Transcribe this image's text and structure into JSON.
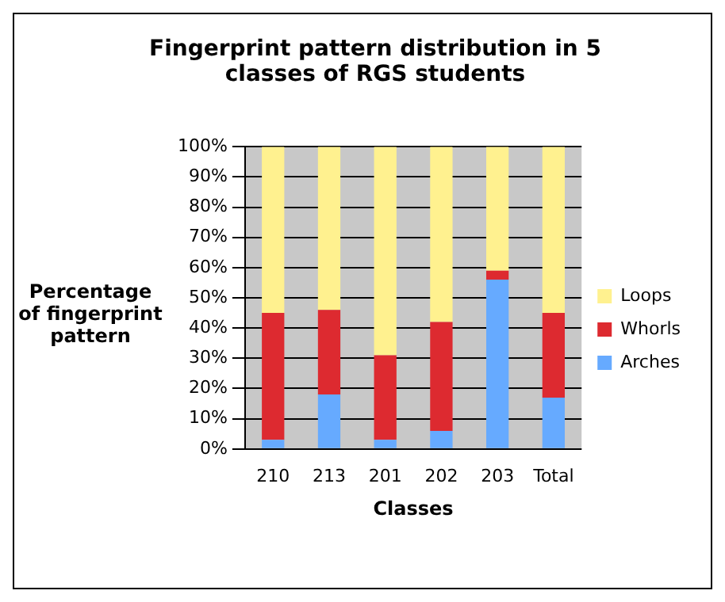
{
  "chart_data": {
    "type": "bar",
    "title": "Fingerprint pattern distribution in 5 classes of RGS students",
    "xlabel": "Classes",
    "ylabel": "Percentage of fingerprint pattern",
    "categories": [
      "210",
      "213",
      "201",
      "202",
      "203",
      "Total"
    ],
    "stacked": true,
    "series": [
      {
        "name": "Arches",
        "color": "#66aaff",
        "values": [
          3,
          18,
          3,
          6,
          56,
          17
        ]
      },
      {
        "name": "Whorls",
        "color": "#dd2a30",
        "values": [
          42,
          28,
          28,
          36,
          3,
          28
        ]
      },
      {
        "name": "Loops",
        "color": "#fff18f",
        "values": [
          55,
          54,
          69,
          58,
          41,
          55
        ]
      }
    ],
    "ylim": [
      0,
      100
    ],
    "yticks": [
      {
        "value": 0,
        "label": "0%"
      },
      {
        "value": 10,
        "label": "10%"
      },
      {
        "value": 20,
        "label": "20%"
      },
      {
        "value": 30,
        "label": "30%"
      },
      {
        "value": 40,
        "label": "40%"
      },
      {
        "value": 50,
        "label": "50%"
      },
      {
        "value": 60,
        "label": "60%"
      },
      {
        "value": 70,
        "label": "70%"
      },
      {
        "value": 80,
        "label": "80%"
      },
      {
        "value": 90,
        "label": "90%"
      },
      {
        "value": 100,
        "label": "100%"
      }
    ],
    "grid": "y",
    "legend": "right"
  }
}
